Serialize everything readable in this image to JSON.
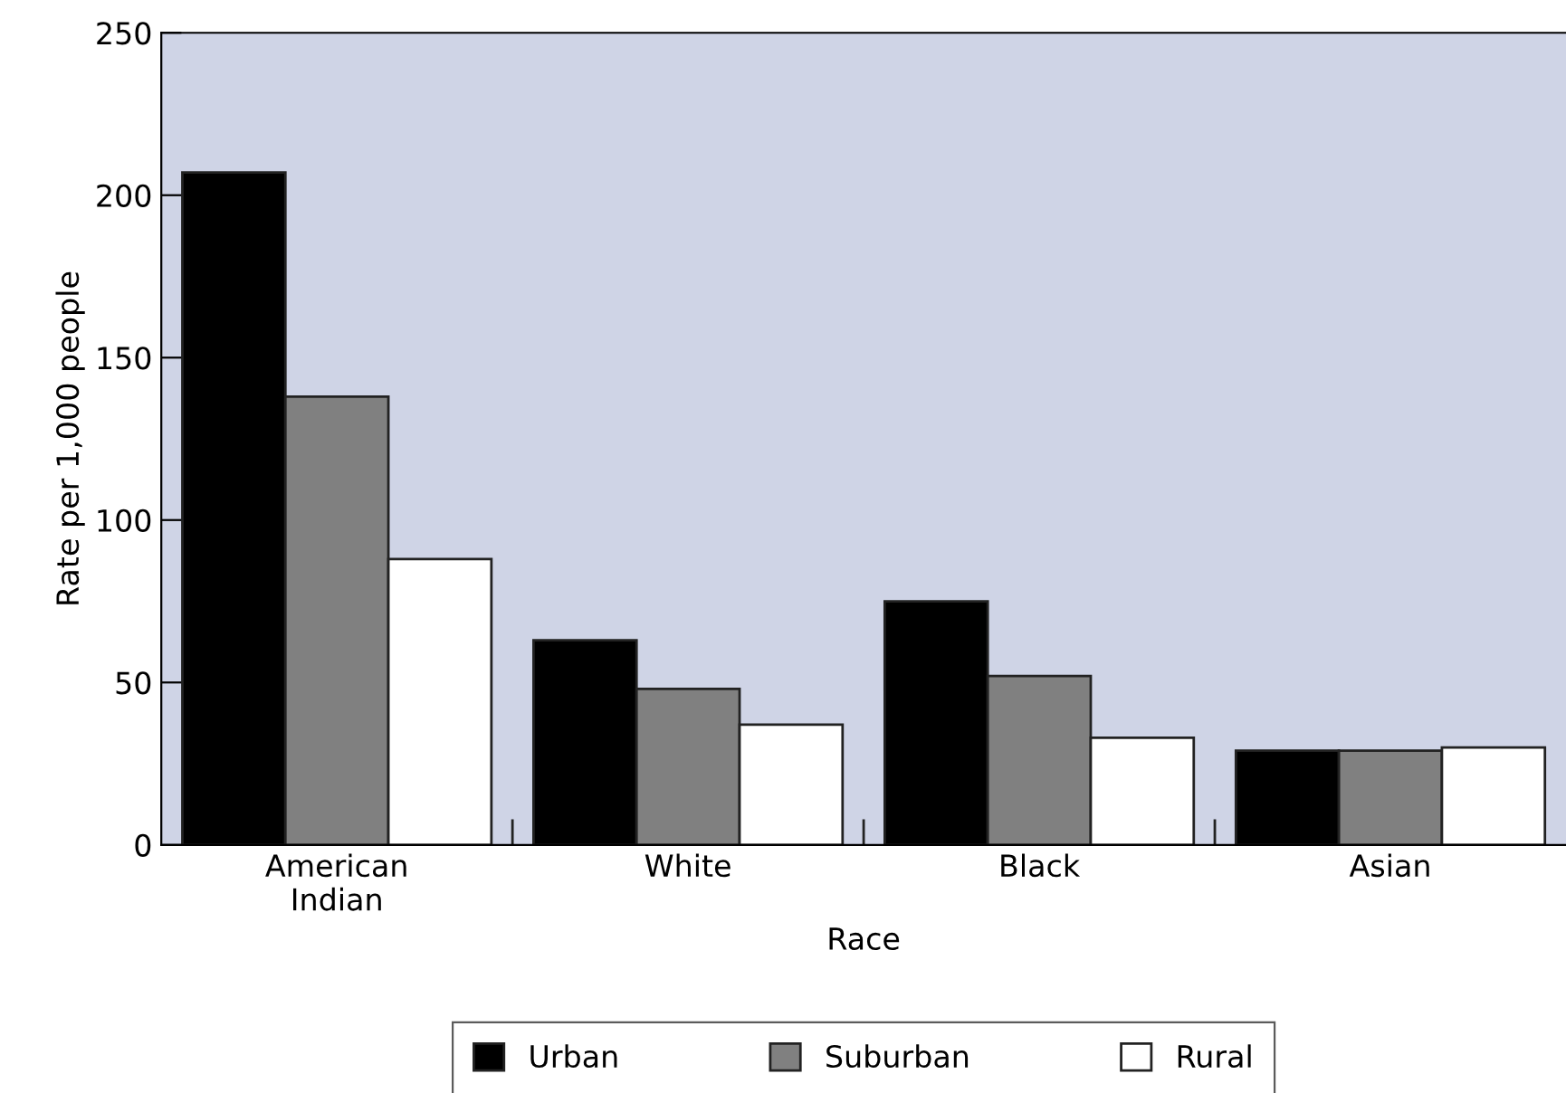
{
  "chart_data": {
    "type": "bar",
    "xlabel": "Race",
    "ylabel": "Rate per 1,000 people",
    "categories": [
      "American\nIndian",
      "White",
      "Black",
      "Asian"
    ],
    "series": [
      {
        "name": "Urban",
        "color": "#000000",
        "values": [
          207,
          63,
          75,
          29
        ]
      },
      {
        "name": "Suburban",
        "color": "#808080",
        "values": [
          138,
          48,
          52,
          29
        ]
      },
      {
        "name": "Rural",
        "color": "#ffffff",
        "values": [
          88,
          37,
          33,
          30
        ]
      }
    ],
    "ylim": [
      0,
      250
    ],
    "yticks": [
      0,
      50,
      100,
      150,
      200,
      250
    ],
    "grid": false,
    "legend": "bottom"
  }
}
